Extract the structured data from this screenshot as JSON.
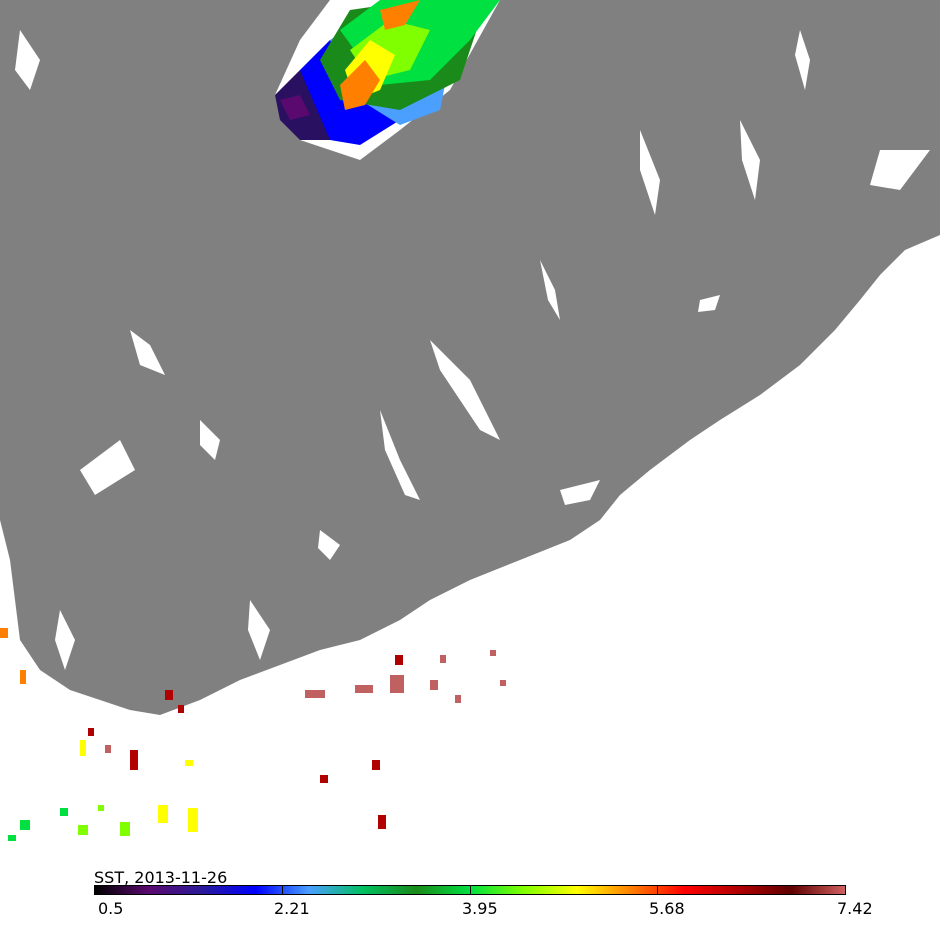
{
  "map": {
    "land_color": "#808080",
    "water_color": "#ffffff",
    "clouds_color": "#ffffff"
  },
  "colorbar": {
    "title": "SST, 2013-11-26",
    "ticks": [
      "0.5",
      "2.21",
      "3.95",
      "5.68",
      "7.42"
    ],
    "colors": [
      "#000000",
      "#5a0a6e",
      "#2a1a9a",
      "#0000ff",
      "#4a9fff",
      "#00c060",
      "#1a8a1a",
      "#00e040",
      "#80ff00",
      "#ffff00",
      "#ff8000",
      "#ff0000",
      "#b00000",
      "#600000",
      "#d06060"
    ]
  }
}
